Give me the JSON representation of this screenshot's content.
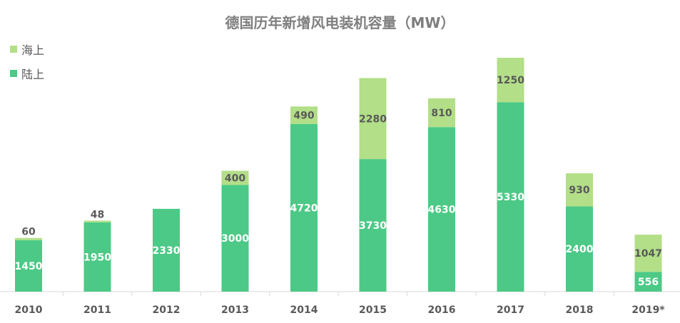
{
  "chart_data": {
    "type": "bar",
    "stacked": true,
    "title": "德国历年新增风电装机容量（MW）",
    "categories": [
      "2010",
      "2011",
      "2012",
      "2013",
      "2014",
      "2015",
      "2016",
      "2017",
      "2018",
      "2019*"
    ],
    "series": [
      {
        "name": "陆上",
        "color": "#4cc986",
        "values": [
          1450,
          1950,
          2330,
          3000,
          4720,
          3730,
          4630,
          5330,
          2400,
          556
        ]
      },
      {
        "name": "海上",
        "color": "#b2df87",
        "values": [
          60,
          48,
          null,
          400,
          490,
          2280,
          810,
          1250,
          930,
          1047
        ]
      }
    ],
    "ylim": [
      0,
      7000
    ],
    "legend_position": "top-left",
    "grid": false
  }
}
